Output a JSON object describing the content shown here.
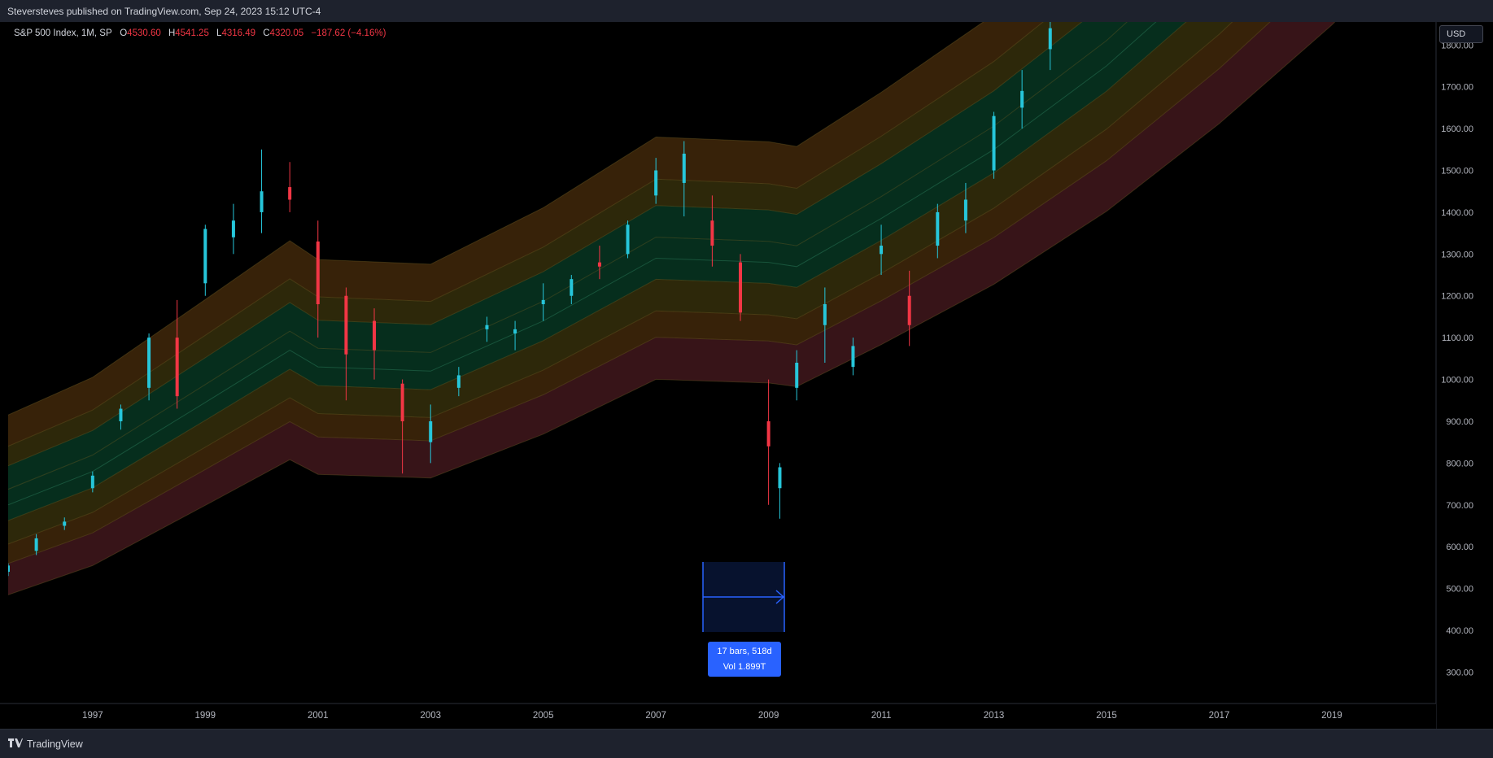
{
  "header": {
    "publisher_line": "Steversteves published on TradingView.com, Sep 24, 2023 15:12 UTC-4"
  },
  "legend": {
    "symbol": "S&P 500 Index, 1M, SP",
    "open_label": "O",
    "open": "4530.60",
    "high_label": "H",
    "high": "4541.25",
    "low_label": "L",
    "low": "4316.49",
    "close_label": "C",
    "close": "4320.05",
    "change": "−187.62 (−4.16%)"
  },
  "currency_button": {
    "label": "USD"
  },
  "measure_tool": {
    "line1": "17 bars, 518d",
    "line2": "Vol 1.899T"
  },
  "footer": {
    "brand": "TradingView",
    "logo_icon": "tradingview-logo-icon"
  },
  "colors": {
    "background": "#000000",
    "candle_up": "#26c6da",
    "candle_down": "#f23645",
    "band_outer": "#3a1519",
    "band_mid": "#3a2409",
    "band_inner_yellow": "#2f2a0b",
    "band_core": "#06301f",
    "measure_blue": "#2962ff"
  },
  "chart_data": {
    "type": "candlestick",
    "title": "S&P 500 Index, 1M, SP",
    "x_tick_labels": [
      "1997",
      "1999",
      "2001",
      "2003",
      "2005",
      "2007",
      "2009",
      "2011",
      "2013",
      "2015",
      "2017",
      "2019"
    ],
    "y_tick_labels": [
      "300.00",
      "400.00",
      "500.00",
      "600.00",
      "700.00",
      "800.00",
      "900.00",
      "1000.00",
      "1100.00",
      "1200.00",
      "1300.00",
      "1400.00",
      "1500.00",
      "1600.00",
      "1700.00",
      "1800.00"
    ],
    "ylim": [
      225,
      1855
    ],
    "xlim": [
      1995.5,
      2020.85
    ],
    "grid": false,
    "bands": {
      "description": "regression channel with seven bands (outer red, orange, yellow, green core)",
      "anchors_x": [
        1995.5,
        1997,
        1999,
        2000.5,
        2001,
        2003,
        2005,
        2007,
        2009,
        2009.5,
        2011,
        2013,
        2015,
        2017,
        2019,
        2020.85
      ],
      "mid": [
        700,
        780,
        945,
        1070,
        1030,
        1020,
        1140,
        1290,
        1280,
        1270,
        1385,
        1550,
        1750,
        1990,
        2260,
        2550
      ],
      "offsets": [
        -230,
        -150,
        -100,
        -40,
        40,
        100,
        150,
        230
      ]
    },
    "candles_approx": [
      [
        1995.5,
        540,
        560,
        530,
        555
      ],
      [
        1996,
        590,
        630,
        580,
        620
      ],
      [
        1996.5,
        650,
        670,
        640,
        660
      ],
      [
        1997,
        740,
        780,
        730,
        770
      ],
      [
        1997.5,
        900,
        940,
        880,
        930
      ],
      [
        1998,
        980,
        1110,
        950,
        1100
      ],
      [
        1998.5,
        1100,
        1190,
        930,
        960
      ],
      [
        1999,
        1230,
        1370,
        1200,
        1360
      ],
      [
        1999.5,
        1340,
        1420,
        1300,
        1380
      ],
      [
        2000,
        1400,
        1550,
        1350,
        1450
      ],
      [
        2000.5,
        1460,
        1520,
        1400,
        1430
      ],
      [
        2001,
        1330,
        1380,
        1100,
        1180
      ],
      [
        2001.5,
        1200,
        1220,
        950,
        1060
      ],
      [
        2002,
        1140,
        1170,
        1000,
        1070
      ],
      [
        2002.5,
        990,
        1000,
        775,
        900
      ],
      [
        2003,
        850,
        940,
        800,
        900
      ],
      [
        2003.5,
        980,
        1030,
        960,
        1010
      ],
      [
        2004,
        1120,
        1150,
        1090,
        1130
      ],
      [
        2004.5,
        1110,
        1140,
        1070,
        1120
      ],
      [
        2005,
        1180,
        1230,
        1140,
        1190
      ],
      [
        2005.5,
        1200,
        1250,
        1180,
        1240
      ],
      [
        2006,
        1280,
        1320,
        1240,
        1270
      ],
      [
        2006.5,
        1300,
        1380,
        1290,
        1370
      ],
      [
        2007,
        1440,
        1530,
        1420,
        1500
      ],
      [
        2007.5,
        1470,
        1570,
        1390,
        1540
      ],
      [
        2008,
        1380,
        1440,
        1270,
        1320
      ],
      [
        2008.5,
        1280,
        1300,
        1140,
        1160
      ],
      [
        2009,
        900,
        1000,
        700,
        840
      ],
      [
        2009.2,
        740,
        800,
        667,
        790
      ],
      [
        2009.5,
        980,
        1070,
        950,
        1040
      ],
      [
        2010,
        1130,
        1220,
        1040,
        1180
      ],
      [
        2010.5,
        1030,
        1100,
        1010,
        1080
      ],
      [
        2011,
        1300,
        1370,
        1250,
        1320
      ],
      [
        2011.5,
        1200,
        1260,
        1080,
        1130
      ],
      [
        2012,
        1320,
        1420,
        1290,
        1400
      ],
      [
        2012.5,
        1380,
        1470,
        1350,
        1430
      ],
      [
        2013,
        1500,
        1640,
        1480,
        1630
      ],
      [
        2013.5,
        1650,
        1740,
        1600,
        1690
      ],
      [
        2014,
        1790,
        1860,
        1740,
        1840
      ]
    ]
  }
}
